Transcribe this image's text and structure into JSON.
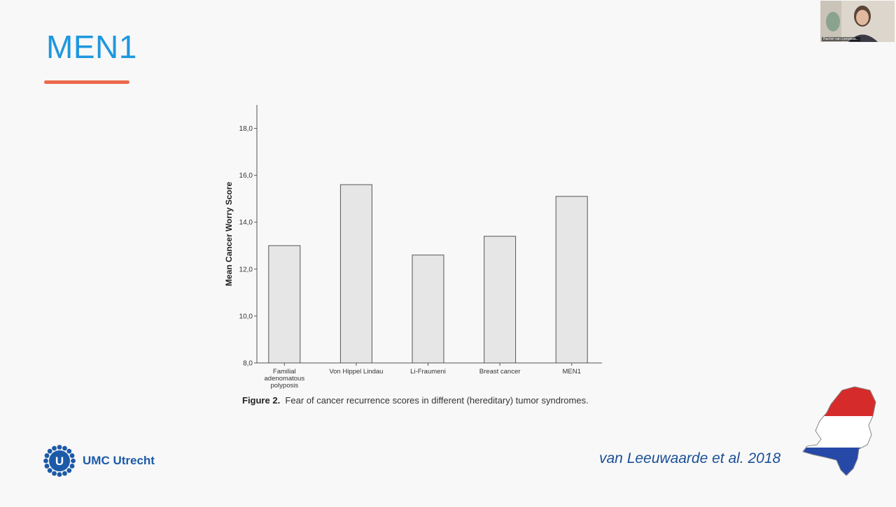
{
  "slide": {
    "title": "MEN1",
    "citation": "van Leeuwaarde et al. 2018",
    "logo_text": "UMC Utrecht",
    "webcam_name": "Rachel van Leeuwaa...",
    "colors": {
      "title": "#1e97de",
      "underline": "#ec6a4c",
      "logo": "#1c5aa8",
      "citation": "#1a4f96"
    }
  },
  "figure": {
    "caption_label": "Figure 2.",
    "caption_text": "Fear of cancer recurrence scores in different (hereditary) tumor syndromes."
  },
  "chart_data": {
    "type": "bar",
    "categories": [
      [
        "Familial",
        "adenomatous",
        "polyposis"
      ],
      [
        "Von Hippel Lindau"
      ],
      [
        "Li-Fraumeni"
      ],
      [
        "Breast cancer"
      ],
      [
        "MEN1"
      ]
    ],
    "values": [
      13.0,
      15.6,
      12.6,
      13.4,
      15.1
    ],
    "ylabel": "Mean Cancer Worry Score",
    "xlabel": "",
    "ylim": [
      8,
      19
    ],
    "yticks": [
      8,
      10,
      12,
      14,
      16,
      18
    ],
    "ytick_labels": [
      "8,0",
      "10,0",
      "12,0",
      "14,0",
      "16,0",
      "18,0"
    ],
    "bar_color": "#e6e6e6",
    "grid": false
  }
}
